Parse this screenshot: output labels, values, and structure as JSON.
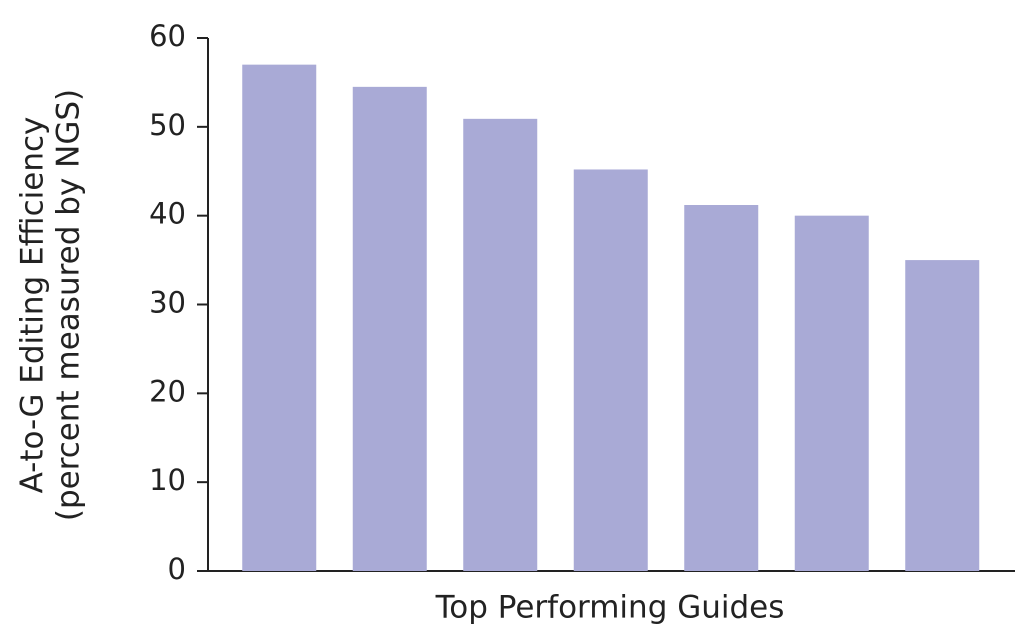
{
  "chart_data": {
    "type": "bar",
    "ylabel": [
      "A-to-G Editing Efficiency",
      "(percent measured by NGS)"
    ],
    "xlabel": "Top Performing Guides",
    "categories": [
      null,
      null,
      null,
      null,
      null,
      null,
      null
    ],
    "values": [
      57.0,
      54.5,
      50.9,
      45.2,
      41.2,
      40.0,
      35.0
    ],
    "color": "#a9aad6",
    "ylim": [
      0,
      60
    ],
    "yticks": [
      0,
      10,
      20,
      30,
      40,
      50,
      60
    ],
    "grid": false
  }
}
